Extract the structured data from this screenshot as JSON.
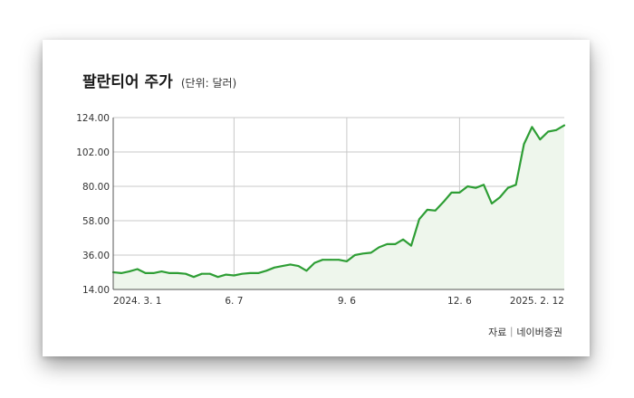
{
  "title": "팔란티어 주가",
  "unit_label": "(단위: 달러)",
  "source": "자료｜네이버증권",
  "colors": {
    "line": "#2e9e35",
    "fill": "#eef6ec",
    "grid": "#c9c9c9",
    "axis": "#555555"
  },
  "chart_data": {
    "type": "area",
    "title": "팔란티어 주가",
    "unit": "달러",
    "xlabel": "",
    "ylabel": "",
    "ylim": [
      14,
      124
    ],
    "y_ticks": [
      "14.00",
      "36.00",
      "58.00",
      "80.00",
      "102.00",
      "124.00"
    ],
    "x_ticks": [
      {
        "label": "2024. 3. 1",
        "index": 0
      },
      {
        "label": "6. 7",
        "index": 15
      },
      {
        "label": "9. 6",
        "index": 29
      },
      {
        "label": "12. 6",
        "index": 43
      },
      {
        "label": "2025. 2. 12",
        "index": 56
      }
    ],
    "grid": true,
    "series": [
      {
        "values": [
          25,
          24.5,
          25.5,
          27,
          24.5,
          24.5,
          25.5,
          24.5,
          24.5,
          24,
          22,
          24,
          24,
          22,
          23.5,
          23,
          24,
          24.5,
          24.5,
          26,
          28,
          29,
          30,
          29,
          26,
          31,
          33,
          33,
          33,
          32,
          36,
          37,
          37.5,
          41,
          43,
          43,
          46,
          42,
          59,
          65,
          64.5,
          70,
          76,
          76,
          80,
          79,
          81,
          69,
          73,
          79,
          81,
          107,
          118,
          110,
          115,
          116,
          119
        ]
      }
    ]
  }
}
